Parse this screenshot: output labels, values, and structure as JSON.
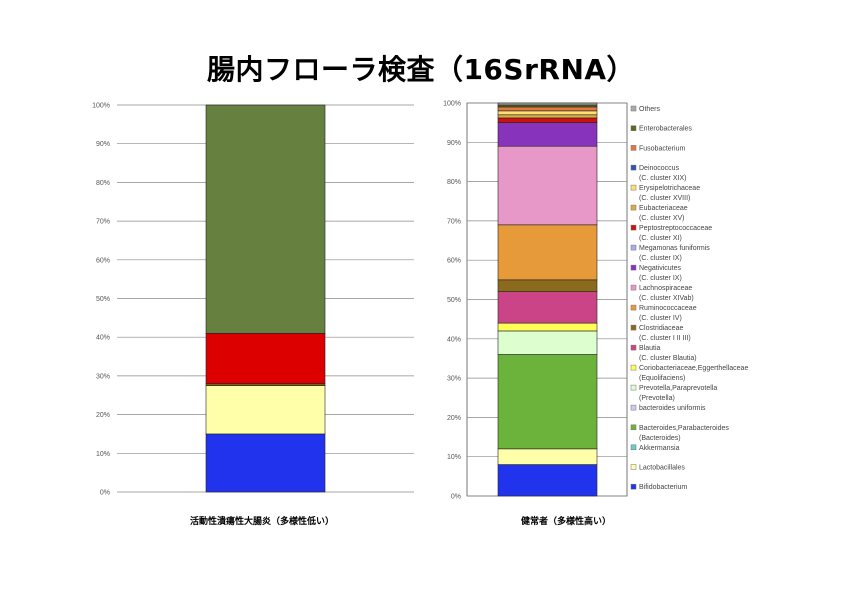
{
  "title": "腸内フローラ検査（16SrRNA）",
  "chart_data": [
    {
      "type": "bar",
      "stacked": true,
      "title": "",
      "caption": "活動性潰瘍性大腸炎（多様性低い）",
      "xlabel": "",
      "ylabel": "",
      "ylim": [
        0,
        100
      ],
      "yticks": [
        "0%",
        "10%",
        "20%",
        "30%",
        "40%",
        "50%",
        "60%",
        "70%",
        "80%",
        "90%",
        "100%"
      ],
      "grid": true,
      "segments": [
        {
          "value": 15,
          "color": "#2233ee"
        },
        {
          "value": 12.5,
          "color": "#ffffaa"
        },
        {
          "value": 0.5,
          "color": "#806010"
        },
        {
          "value": 13,
          "color": "#dd0000"
        },
        {
          "value": 59,
          "color": "#668040"
        }
      ]
    },
    {
      "type": "bar",
      "stacked": true,
      "title": "",
      "caption": "健常者（多様性高い）",
      "xlabel": "",
      "ylabel": "",
      "ylim": [
        0,
        100
      ],
      "yticks": [
        "0%",
        "10%",
        "20%",
        "30%",
        "40%",
        "50%",
        "60%",
        "70%",
        "80%",
        "90%",
        "100%"
      ],
      "grid": true,
      "legend_position": "right",
      "segments": [
        {
          "value": 8,
          "color": "#2233ee"
        },
        {
          "value": 4,
          "color": "#ffffaa"
        },
        {
          "value": 0,
          "color": "#66cccc"
        },
        {
          "value": 24,
          "color": "#6bb33a"
        },
        {
          "value": 0,
          "color": "#ccccee"
        },
        {
          "value": 6,
          "color": "#ddffd0"
        },
        {
          "value": 2,
          "color": "#ffff55"
        },
        {
          "value": 8,
          "color": "#cc4488"
        },
        {
          "value": 3,
          "color": "#8b6a1e"
        },
        {
          "value": 14,
          "color": "#e69a3a"
        },
        {
          "value": 20,
          "color": "#e898c8"
        },
        {
          "value": 6,
          "color": "#8833bb"
        },
        {
          "value": 0,
          "color": "#aaaaee"
        },
        {
          "value": 1.2,
          "color": "#cc1111"
        },
        {
          "value": 0.8,
          "color": "#ddaa44"
        },
        {
          "value": 1,
          "color": "#ffe070"
        },
        {
          "value": 0,
          "color": "#3355aa"
        },
        {
          "value": 1,
          "color": "#e07840"
        },
        {
          "value": 0.5,
          "color": "#5a6a20"
        },
        {
          "value": 0.5,
          "color": "#aaaaaa"
        }
      ],
      "legend": [
        {
          "lines": [
            "Others"
          ],
          "color": "#aaaaaa"
        },
        {
          "lines": [
            "Enterobacterales"
          ],
          "color": "#5a6a20"
        },
        {
          "lines": [
            "Fusobacterium"
          ],
          "color": "#e07840"
        },
        {
          "lines": [
            "Deinococcus",
            "(C. cluster XIX)"
          ],
          "color": "#3355aa"
        },
        {
          "lines": [
            "Erysipelotrichaceae",
            "(C. cluster XVIII)"
          ],
          "color": "#ffe070"
        },
        {
          "lines": [
            "Eubacteriaceae",
            "(C. cluster XV)"
          ],
          "color": "#ddaa44"
        },
        {
          "lines": [
            "Peptostreptococcaceae",
            "(C. cluster XI)"
          ],
          "color": "#cc1111"
        },
        {
          "lines": [
            "Megamonas funiformis",
            "(C. cluster IX)"
          ],
          "color": "#aaaaee"
        },
        {
          "lines": [
            "Negativicutes",
            "(C. cluster IX)"
          ],
          "color": "#8833bb"
        },
        {
          "lines": [
            "Lachnospiraceae",
            "(C. cluster XIVab)"
          ],
          "color": "#e898c8"
        },
        {
          "lines": [
            "Ruminococcaceae",
            "(C. cluster IV)"
          ],
          "color": "#e69a3a"
        },
        {
          "lines": [
            "Clostridiaceae",
            "(C. cluster I II III)"
          ],
          "color": "#8b6a1e"
        },
        {
          "lines": [
            "Blautia",
            "(C. cluster Blautia)"
          ],
          "color": "#cc4488"
        },
        {
          "lines": [
            "Coriobacteriaceae,Eggerthellaceae",
            "(Equolifaciens)"
          ],
          "color": "#ffff55"
        },
        {
          "lines": [
            "Prevotella,Paraprevotella",
            "(Prevotella)"
          ],
          "color": "#ddffd0"
        },
        {
          "lines": [
            "bacteroides uniformis"
          ],
          "color": "#ccccee"
        },
        {
          "lines": [
            "Bacteroides,Parabacteroides",
            "(Bacteroides)"
          ],
          "color": "#6bb33a"
        },
        {
          "lines": [
            "Akkermansia"
          ],
          "color": "#66cccc"
        },
        {
          "lines": [
            "Lactobacillales"
          ],
          "color": "#ffffaa"
        },
        {
          "lines": [
            "Bifidobacterium"
          ],
          "color": "#2233ee"
        }
      ]
    }
  ]
}
